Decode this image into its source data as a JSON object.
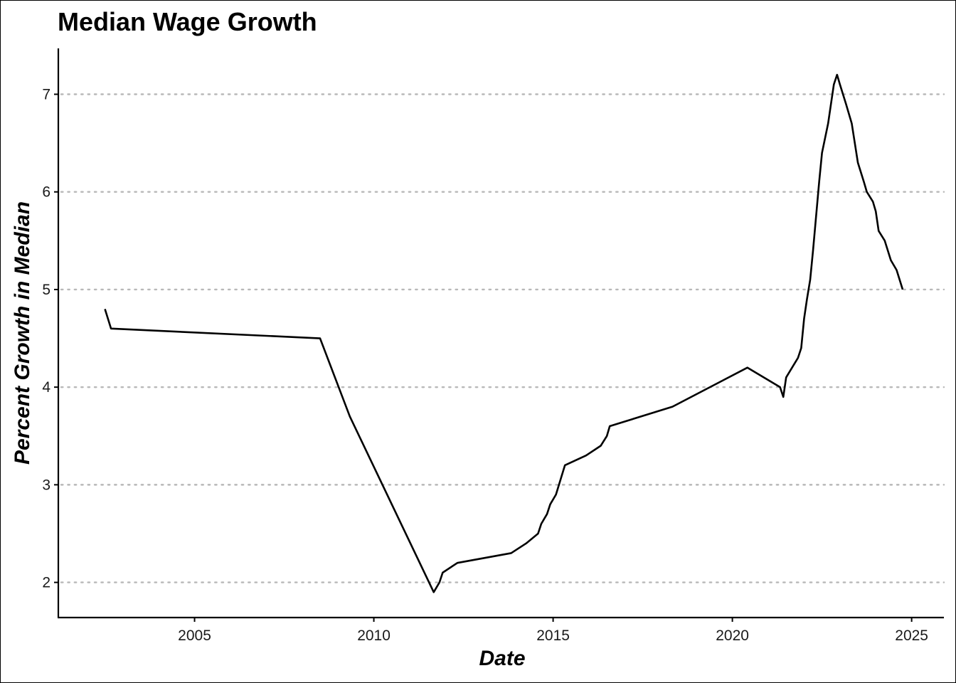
{
  "chart_data": {
    "type": "line",
    "title": "Median Wage Growth",
    "xlabel": "Date",
    "ylabel": "Percent Growth in Median",
    "xlim": [
      2001.2,
      2025.9
    ],
    "ylim": [
      1.64,
      7.47
    ],
    "x_ticks": [
      "2005",
      "2010",
      "2015",
      "2020",
      "2025"
    ],
    "x_tick_values": [
      2005,
      2010,
      2015,
      2020,
      2025
    ],
    "y_ticks": [
      "2",
      "3",
      "4",
      "5",
      "6",
      "7"
    ],
    "y_tick_values": [
      2,
      3,
      4,
      5,
      6,
      7
    ],
    "grid": {
      "major_y": true,
      "style": "dotted",
      "color": "#b8b8b8"
    },
    "legend": "none",
    "line_color": "#000000",
    "series": [
      {
        "x": [
          2002.5,
          2002.67,
          2008.5,
          2009.33,
          2011.67,
          2011.83,
          2011.92,
          2012.33,
          2013.83,
          2014.25,
          2014.58,
          2014.67,
          2014.83,
          2014.92,
          2015.08,
          2015.33,
          2015.92,
          2016.33,
          2016.5,
          2016.58,
          2018.33,
          2020.42,
          2021.33,
          2021.42,
          2021.5,
          2021.83,
          2021.92,
          2022.0,
          2022.08,
          2022.17,
          2022.25,
          2022.42,
          2022.5,
          2022.67,
          2022.75,
          2022.83,
          2022.92,
          2023.0,
          2023.17,
          2023.33,
          2023.5,
          2023.67,
          2023.75,
          2023.92,
          2024.0,
          2024.08,
          2024.25,
          2024.42,
          2024.58,
          2024.75
        ],
        "y": [
          4.8,
          4.6,
          4.5,
          3.7,
          1.9,
          2.0,
          2.1,
          2.2,
          2.3,
          2.4,
          2.5,
          2.6,
          2.7,
          2.8,
          2.9,
          3.2,
          3.3,
          3.4,
          3.5,
          3.6,
          3.8,
          4.2,
          4.0,
          3.9,
          4.1,
          4.3,
          4.4,
          4.7,
          4.9,
          5.1,
          5.4,
          6.1,
          6.4,
          6.7,
          6.9,
          7.1,
          7.2,
          7.1,
          6.9,
          6.7,
          6.3,
          6.1,
          6.0,
          5.9,
          5.8,
          5.6,
          5.5,
          5.3,
          5.2,
          5.0
        ]
      }
    ]
  }
}
